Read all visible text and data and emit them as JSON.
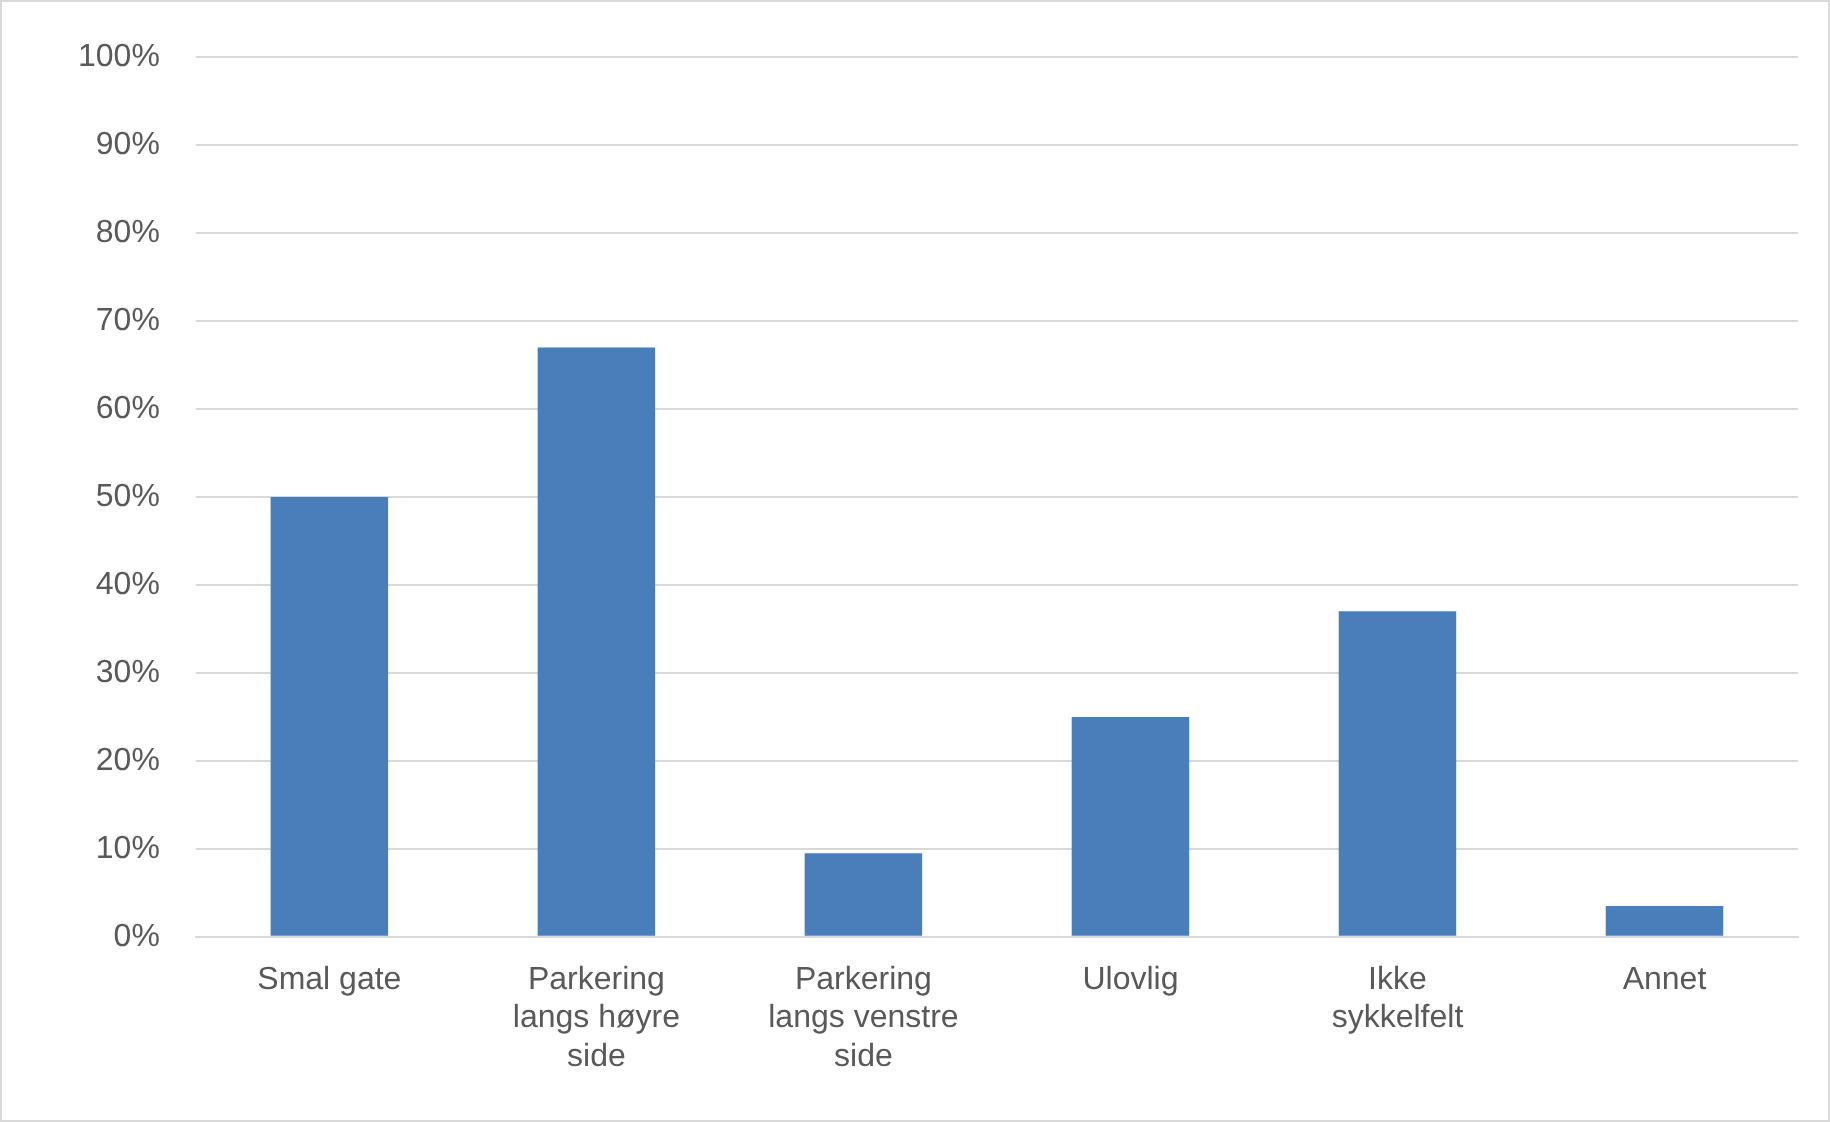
{
  "chart_data": {
    "type": "bar",
    "categories": [
      "Smal gate",
      "Parkering langs høyre side",
      "Parkering langs venstre side",
      "Ulovlig",
      "Ikke sykkelfelt",
      "Annet"
    ],
    "values": [
      50,
      67,
      9.5,
      25,
      37,
      3.5
    ],
    "color": "#4a7ebb",
    "ylim": [
      0,
      100
    ],
    "yticks": [
      {
        "value": 0,
        "label": "0%"
      },
      {
        "value": 10,
        "label": "10%"
      },
      {
        "value": 20,
        "label": "20%"
      },
      {
        "value": 30,
        "label": "30%"
      },
      {
        "value": 40,
        "label": "40%"
      },
      {
        "value": 50,
        "label": "50%"
      },
      {
        "value": 60,
        "label": "60%"
      },
      {
        "value": 70,
        "label": "70%"
      },
      {
        "value": 80,
        "label": "80%"
      },
      {
        "value": 90,
        "label": "90%"
      },
      {
        "value": 100,
        "label": "100%"
      }
    ],
    "grid": "y",
    "legend": false
  }
}
